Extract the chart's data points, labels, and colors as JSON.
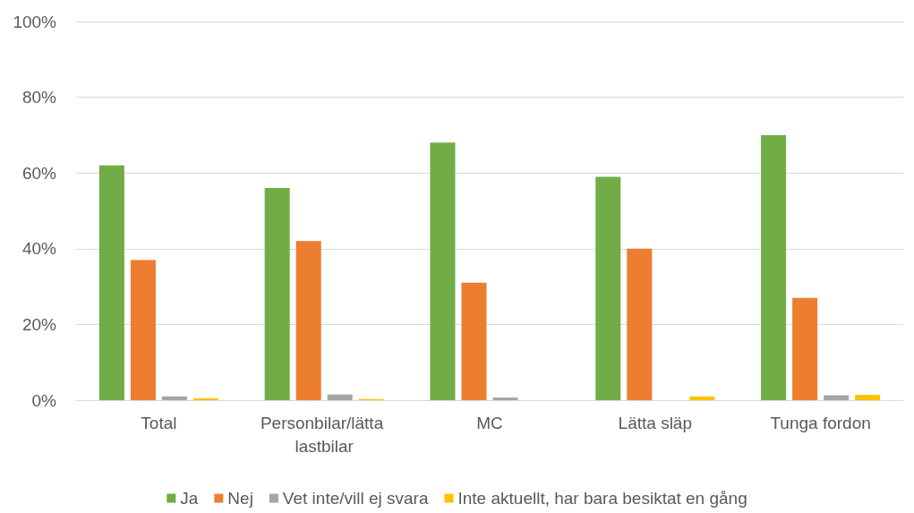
{
  "chart_data": {
    "type": "bar",
    "categories": [
      "Total",
      "Personbilar/lätta lastbilar",
      "MC",
      "Lätta släp",
      "Tunga fordon"
    ],
    "series": [
      {
        "name": "Ja",
        "color": "#70ad47",
        "values": [
          62,
          56,
          68,
          59,
          70
        ]
      },
      {
        "name": "Nej",
        "color": "#ed7d31",
        "values": [
          37,
          42,
          31,
          40,
          27
        ]
      },
      {
        "name": "Vet inte/vill ej svara",
        "color": "#a5a5a5",
        "values": [
          1,
          1.5,
          0.7,
          0,
          1.3
        ]
      },
      {
        "name": "Inte aktuellt, har bara besiktat en gång",
        "color": "#ffc000",
        "values": [
          0.5,
          0.3,
          0,
          1,
          1.4
        ]
      }
    ],
    "ylim": [
      0,
      100
    ],
    "yticks": [
      {
        "value": 0,
        "label": "0%"
      },
      {
        "value": 20,
        "label": "20%"
      },
      {
        "value": 40,
        "label": "40%"
      },
      {
        "value": 60,
        "label": "60%"
      },
      {
        "value": 80,
        "label": "80%"
      },
      {
        "value": 100,
        "label": "100%"
      }
    ],
    "grid": "y",
    "legend": "bottom"
  }
}
